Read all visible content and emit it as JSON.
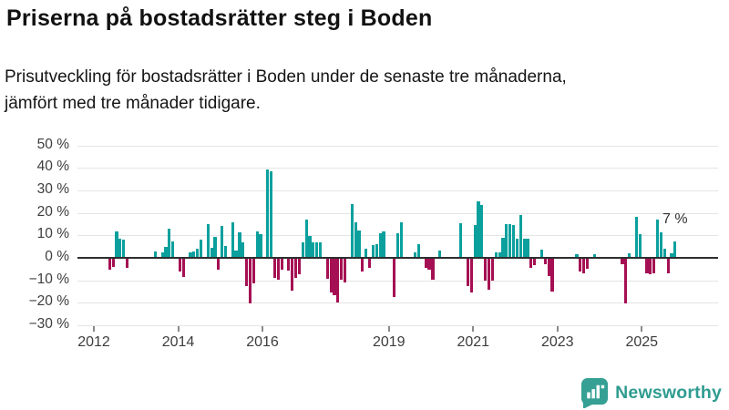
{
  "header": {
    "title": "Priserna på bostadsrätter steg i Boden",
    "subtitle_line1": "Prisutveckling för bostadsrätter i Boden under de senaste tre månaderna,",
    "subtitle_line2": "jämfört med tre månader tidigare."
  },
  "branding": {
    "logo_text": "Newsworthy",
    "logo_color": "#2f9c90"
  },
  "chart_data": {
    "type": "bar",
    "unit": "%",
    "grid": "horizontal",
    "ylim": [
      -30,
      50
    ],
    "y_ticks": [
      {
        "v": 50,
        "label": "50 %"
      },
      {
        "v": 40,
        "label": "40 %"
      },
      {
        "v": 30,
        "label": "30 %"
      },
      {
        "v": 20,
        "label": "20 %"
      },
      {
        "v": 10,
        "label": "10 %"
      },
      {
        "v": 0,
        "label": "0 %"
      },
      {
        "v": -10,
        "label": "−10 %"
      },
      {
        "v": -20,
        "label": "−20 %"
      },
      {
        "v": -30,
        "label": "−30 %"
      }
    ],
    "x_ticks": [
      {
        "year": 2012,
        "label": "2012"
      },
      {
        "year": 2014,
        "label": "2014"
      },
      {
        "year": 2016,
        "label": "2016"
      },
      {
        "year": 2019,
        "label": "2019"
      },
      {
        "year": 2021,
        "label": "2021"
      },
      {
        "year": 2023,
        "label": "2023"
      },
      {
        "year": 2025,
        "label": "2025"
      }
    ],
    "annotation": {
      "text": "7 %"
    },
    "positive_color": "#0ba09d",
    "negative_color": "#a50f53",
    "points": [
      {
        "d": "2012-05",
        "v": -5
      },
      {
        "d": "2012-06",
        "v": -3.5
      },
      {
        "d": "2012-07",
        "v": 11.4
      },
      {
        "d": "2012-08",
        "v": 8.1
      },
      {
        "d": "2012-09",
        "v": 7.7
      },
      {
        "d": "2012-10",
        "v": -3.9
      },
      {
        "d": "2013-06",
        "v": 2.5
      },
      {
        "d": "2013-08",
        "v": 2
      },
      {
        "d": "2013-09",
        "v": 4.5
      },
      {
        "d": "2013-10",
        "v": 12.5
      },
      {
        "d": "2013-11",
        "v": 7
      },
      {
        "d": "2014-01",
        "v": -5.5
      },
      {
        "d": "2014-02",
        "v": -8
      },
      {
        "d": "2014-04",
        "v": 2.2
      },
      {
        "d": "2014-05",
        "v": 2.5
      },
      {
        "d": "2014-06",
        "v": 3.5
      },
      {
        "d": "2014-07",
        "v": 7.5
      },
      {
        "d": "2014-09",
        "v": 14.5
      },
      {
        "d": "2014-10",
        "v": 4.2
      },
      {
        "d": "2014-11",
        "v": 9.1
      },
      {
        "d": "2014-12",
        "v": -5
      },
      {
        "d": "2015-01",
        "v": 13.6
      },
      {
        "d": "2015-02",
        "v": 4.9
      },
      {
        "d": "2015-04",
        "v": 15.4
      },
      {
        "d": "2015-05",
        "v": 3
      },
      {
        "d": "2015-06",
        "v": 11
      },
      {
        "d": "2015-07",
        "v": 6.5
      },
      {
        "d": "2015-08",
        "v": -12
      },
      {
        "d": "2015-09",
        "v": -20
      },
      {
        "d": "2015-10",
        "v": -11
      },
      {
        "d": "2015-11",
        "v": 11.5
      },
      {
        "d": "2015-12",
        "v": 10
      },
      {
        "d": "2016-02",
        "v": 39
      },
      {
        "d": "2016-03",
        "v": 38
      },
      {
        "d": "2016-04",
        "v": -8.3
      },
      {
        "d": "2016-05",
        "v": -9.2
      },
      {
        "d": "2016-06",
        "v": -4.8
      },
      {
        "d": "2016-08",
        "v": -5.2
      },
      {
        "d": "2016-09",
        "v": -14.3
      },
      {
        "d": "2016-10",
        "v": -8.3
      },
      {
        "d": "2016-11",
        "v": -6.9
      },
      {
        "d": "2016-12",
        "v": 6.6
      },
      {
        "d": "2017-01",
        "v": 16.8
      },
      {
        "d": "2017-02",
        "v": 9.4
      },
      {
        "d": "2017-03",
        "v": 6.5
      },
      {
        "d": "2017-04",
        "v": 6.5
      },
      {
        "d": "2017-05",
        "v": 6.5
      },
      {
        "d": "2017-07",
        "v": -9
      },
      {
        "d": "2017-08",
        "v": -15
      },
      {
        "d": "2017-09",
        "v": -16
      },
      {
        "d": "2017-10",
        "v": -19.5
      },
      {
        "d": "2017-11",
        "v": -9.5
      },
      {
        "d": "2017-12",
        "v": -10.5
      },
      {
        "d": "2018-02",
        "v": 23.5
      },
      {
        "d": "2018-03",
        "v": 15.2
      },
      {
        "d": "2018-04",
        "v": 11.6
      },
      {
        "d": "2018-05",
        "v": -5.5
      },
      {
        "d": "2018-06",
        "v": 3.8
      },
      {
        "d": "2018-07",
        "v": -4
      },
      {
        "d": "2018-08",
        "v": 5.1
      },
      {
        "d": "2018-09",
        "v": 5.8
      },
      {
        "d": "2018-10",
        "v": 10.7
      },
      {
        "d": "2018-11",
        "v": 11.4
      },
      {
        "d": "2019-02",
        "v": -17
      },
      {
        "d": "2019-03",
        "v": 10.7
      },
      {
        "d": "2019-04",
        "v": 15.5
      },
      {
        "d": "2019-08",
        "v": 2.1
      },
      {
        "d": "2019-09",
        "v": 5.7
      },
      {
        "d": "2019-11",
        "v": -4
      },
      {
        "d": "2019-12",
        "v": -5
      },
      {
        "d": "2020-01",
        "v": -9.5
      },
      {
        "d": "2020-03",
        "v": 2.8
      },
      {
        "d": "2020-09",
        "v": 15
      },
      {
        "d": "2020-11",
        "v": -12
      },
      {
        "d": "2020-12",
        "v": -15
      },
      {
        "d": "2021-01",
        "v": 14
      },
      {
        "d": "2021-02",
        "v": 24.7
      },
      {
        "d": "2021-03",
        "v": 23
      },
      {
        "d": "2021-04",
        "v": -9.6
      },
      {
        "d": "2021-05",
        "v": -13.7
      },
      {
        "d": "2021-06",
        "v": -9.6
      },
      {
        "d": "2021-07",
        "v": 2.1
      },
      {
        "d": "2021-08",
        "v": 2.1
      },
      {
        "d": "2021-09",
        "v": 8.5
      },
      {
        "d": "2021-10",
        "v": 14.5
      },
      {
        "d": "2021-11",
        "v": 14.5
      },
      {
        "d": "2021-12",
        "v": 14
      },
      {
        "d": "2022-01",
        "v": 8
      },
      {
        "d": "2022-02",
        "v": 18.5
      },
      {
        "d": "2022-03",
        "v": 8
      },
      {
        "d": "2022-04",
        "v": 8
      },
      {
        "d": "2022-05",
        "v": -4
      },
      {
        "d": "2022-06",
        "v": -3
      },
      {
        "d": "2022-08",
        "v": 3.1
      },
      {
        "d": "2022-09",
        "v": -2.3
      },
      {
        "d": "2022-10",
        "v": -7.8
      },
      {
        "d": "2022-11",
        "v": -14.6
      },
      {
        "d": "2023-06",
        "v": 1.1
      },
      {
        "d": "2023-07",
        "v": -5.5
      },
      {
        "d": "2023-08",
        "v": -6.5
      },
      {
        "d": "2023-09",
        "v": -4.6
      },
      {
        "d": "2023-11",
        "v": 1.2
      },
      {
        "d": "2024-07",
        "v": -2.5
      },
      {
        "d": "2024-08",
        "v": -20
      },
      {
        "d": "2024-09",
        "v": 1.5
      },
      {
        "d": "2024-11",
        "v": 18
      },
      {
        "d": "2024-12",
        "v": 10
      },
      {
        "d": "2025-02",
        "v": -6.5
      },
      {
        "d": "2025-03",
        "v": -7
      },
      {
        "d": "2025-04",
        "v": -6.5
      },
      {
        "d": "2025-05",
        "v": 16.5
      },
      {
        "d": "2025-06",
        "v": 11
      },
      {
        "d": "2025-07",
        "v": 3.5
      },
      {
        "d": "2025-08",
        "v": -6.5
      },
      {
        "d": "2025-09",
        "v": 1.5
      },
      {
        "d": "2025-10",
        "v": 7
      }
    ]
  }
}
